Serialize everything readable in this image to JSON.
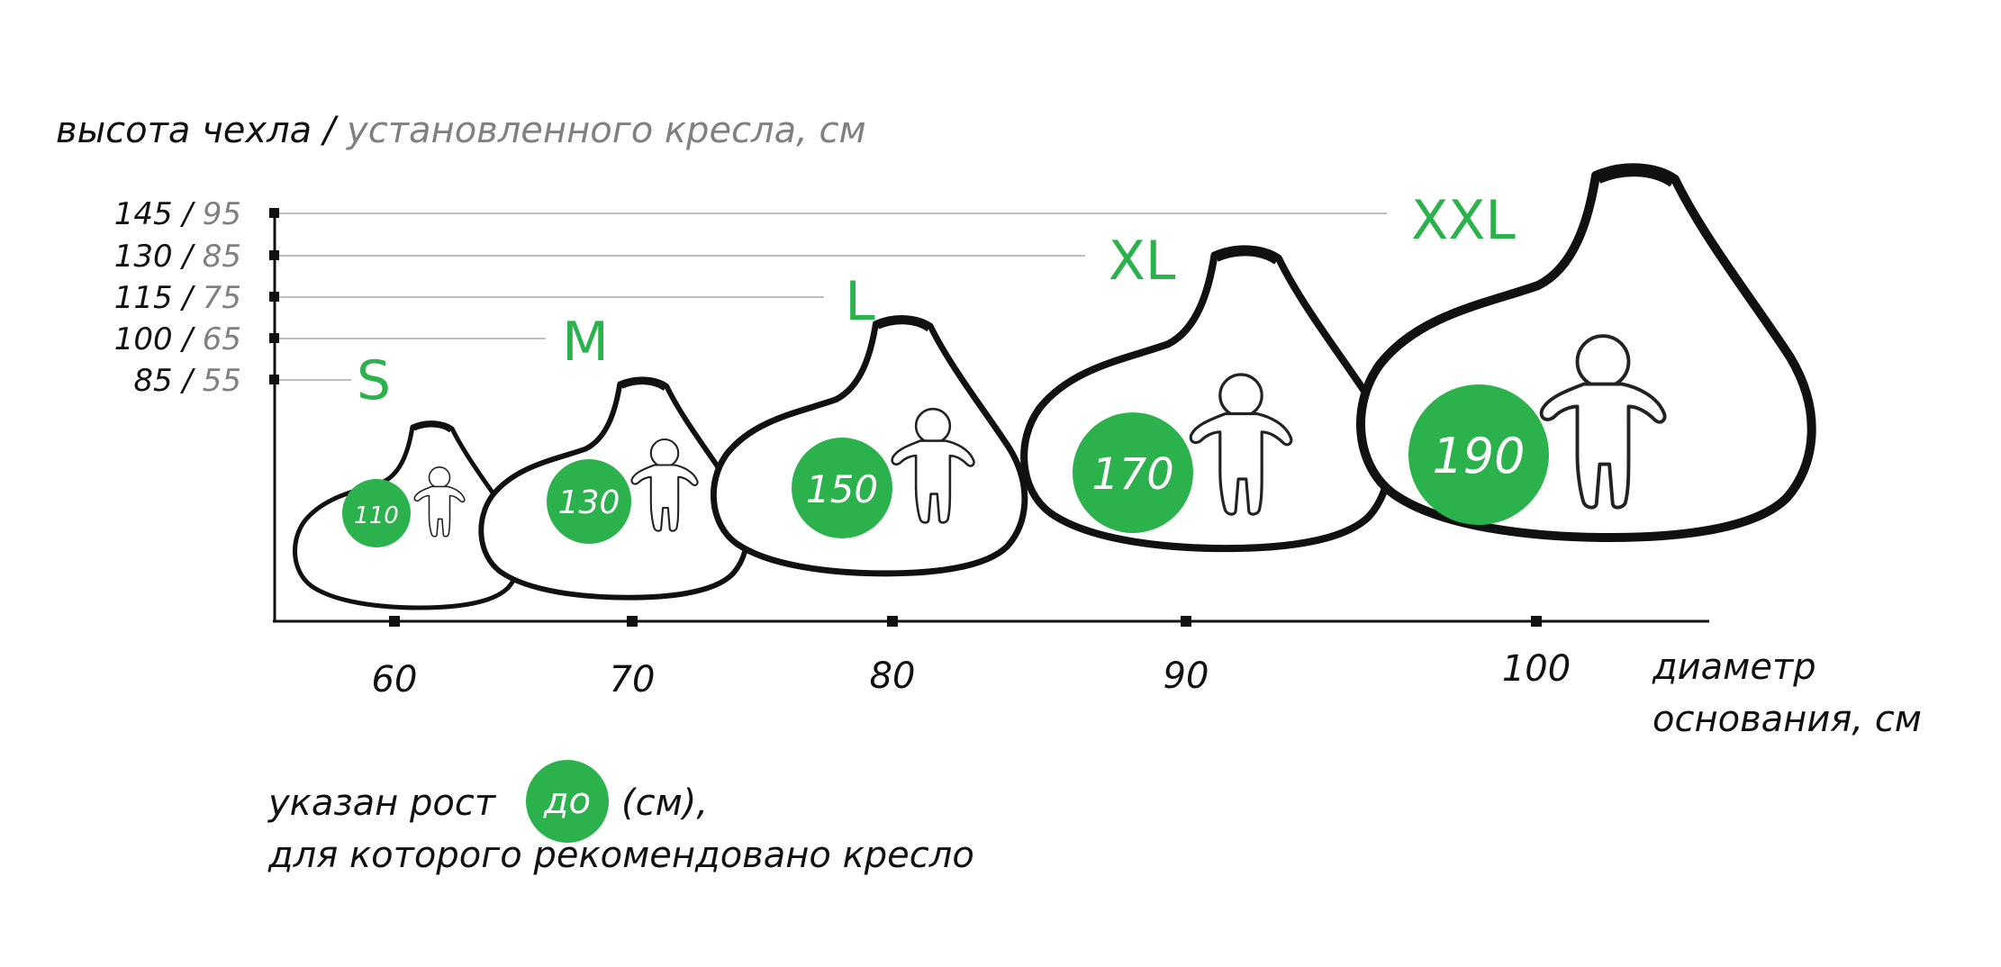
{
  "y_axis_title": {
    "black": "высота чехла /",
    "gray": " установленного кресла, см"
  },
  "x_axis_title": {
    "line1": "диаметр",
    "line2": "основания, см"
  },
  "legend": {
    "prefix": "указан рост",
    "badge": "до",
    "suffix": "(см),",
    "line2": "для которого рекомендовано кресло"
  },
  "colors": {
    "green": "#2bb24c",
    "axis": "#111111",
    "secondary_text": "#808080"
  },
  "y_ticks": [
    {
      "cover": "145",
      "seat": "95"
    },
    {
      "cover": "130",
      "seat": "85"
    },
    {
      "cover": "115",
      "seat": "75"
    },
    {
      "cover": "100",
      "seat": "65"
    },
    {
      "cover": "85",
      "seat": "55"
    }
  ],
  "sizes": [
    {
      "name": "S",
      "diameter": "60",
      "height": "110",
      "cover_height": 85
    },
    {
      "name": "M",
      "diameter": "70",
      "height": "130",
      "cover_height": 100
    },
    {
      "name": "L",
      "diameter": "80",
      "height": "150",
      "cover_height": 115
    },
    {
      "name": "XL",
      "diameter": "90",
      "height": "170",
      "cover_height": 130
    },
    {
      "name": "XXL",
      "diameter": "100",
      "height": "190",
      "cover_height": 145
    }
  ]
}
